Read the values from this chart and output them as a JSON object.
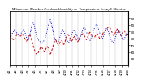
{
  "title": "Milwaukee Weather Outdoor Humidity vs. Temperature Every 5 Minutes",
  "bg_color": "#ffffff",
  "grid_color": "#bbbbbb",
  "humidity_color": "#0000cc",
  "temp_color": "#cc0000",
  "ylim_humidity": [
    20,
    100
  ],
  "ylim_temp": [
    10,
    90
  ],
  "y_right_ticks": [
    20,
    30,
    40,
    50,
    60,
    70,
    80
  ],
  "y_right_labels": [
    "20",
    "30",
    "40",
    "50",
    "60",
    "70",
    "80"
  ],
  "x_tick_labels": [
    "4/1",
    "4/2",
    "4/3",
    "4/4",
    "4/5",
    "4/6",
    "4/7",
    "4/8",
    "4/9",
    "4/10",
    "4/11",
    "4/12",
    "4/13",
    "4/14",
    "4/15",
    "4/16",
    "4/17",
    "4/18",
    "4/19",
    "4/20"
  ],
  "humidity": [
    62,
    63,
    64,
    65,
    67,
    68,
    70,
    71,
    73,
    72,
    71,
    70,
    68,
    67,
    66,
    65,
    64,
    63,
    65,
    67,
    69,
    71,
    72,
    73,
    72,
    70,
    68,
    65,
    62,
    60,
    58,
    57,
    60,
    63,
    66,
    70,
    74,
    78,
    82,
    84,
    83,
    80,
    76,
    72,
    68,
    64,
    61,
    59,
    58,
    57,
    56,
    55,
    54,
    53,
    52,
    53,
    54,
    56,
    58,
    60,
    62,
    65,
    68,
    72,
    76,
    80,
    84,
    87,
    88,
    86,
    82,
    78,
    74,
    70,
    66,
    62,
    59,
    57,
    55,
    54,
    53,
    54,
    56,
    58,
    61,
    64,
    67,
    70,
    72,
    73,
    72,
    70,
    68,
    65,
    62,
    60,
    58,
    56,
    55,
    54,
    55,
    57,
    59,
    62,
    65,
    68,
    70,
    72,
    73,
    72,
    70,
    68,
    66,
    64,
    62,
    60,
    59,
    58,
    60,
    62,
    65,
    68,
    71,
    74,
    76,
    77,
    76,
    74,
    72,
    70,
    67,
    64,
    62,
    60,
    58,
    57,
    58,
    60,
    62,
    65,
    68,
    71,
    74,
    76,
    78,
    80,
    81,
    80,
    78,
    75,
    72,
    69,
    66,
    64,
    62,
    61,
    60,
    62,
    64,
    67,
    70,
    72,
    74,
    75,
    74,
    72,
    70,
    67,
    64,
    61,
    59,
    57,
    56,
    55,
    54,
    55,
    57,
    59,
    62,
    65,
    68,
    70,
    72,
    73,
    72,
    70,
    68,
    65,
    62,
    60,
    58,
    57,
    58,
    60,
    62,
    64,
    66,
    68,
    67,
    65
  ],
  "temperature": [
    55,
    54,
    53,
    52,
    50,
    49,
    48,
    47,
    48,
    50,
    52,
    54,
    56,
    57,
    56,
    55,
    53,
    52,
    53,
    54,
    56,
    57,
    56,
    55,
    53,
    51,
    49,
    47,
    46,
    47,
    49,
    52,
    54,
    56,
    55,
    53,
    50,
    47,
    44,
    41,
    38,
    35,
    32,
    30,
    28,
    27,
    26,
    27,
    29,
    31,
    33,
    35,
    37,
    38,
    37,
    35,
    33,
    31,
    30,
    31,
    33,
    35,
    37,
    38,
    37,
    35,
    32,
    29,
    27,
    28,
    30,
    33,
    36,
    39,
    42,
    45,
    47,
    48,
    47,
    45,
    43,
    41,
    40,
    41,
    43,
    45,
    46,
    47,
    46,
    44,
    42,
    41,
    43,
    45,
    48,
    51,
    53,
    55,
    56,
    55,
    53,
    51,
    49,
    47,
    46,
    47,
    49,
    51,
    52,
    53,
    52,
    50,
    48,
    46,
    45,
    46,
    48,
    50,
    52,
    53,
    54,
    55,
    56,
    57,
    56,
    55,
    53,
    51,
    49,
    48,
    50,
    52,
    54,
    56,
    58,
    59,
    58,
    56,
    54,
    52,
    50,
    49,
    50,
    52,
    54,
    55,
    56,
    57,
    56,
    54,
    52,
    50,
    49,
    50,
    52,
    54,
    56,
    58,
    59,
    60,
    61,
    62,
    63,
    64,
    65,
    66,
    67,
    68,
    67,
    65,
    63,
    61,
    59,
    57,
    55,
    54,
    55,
    57,
    59,
    61,
    63,
    64,
    63,
    61,
    59,
    57,
    55,
    54,
    55,
    57,
    59,
    61,
    62,
    61,
    59,
    57,
    55,
    54,
    55,
    56
  ]
}
